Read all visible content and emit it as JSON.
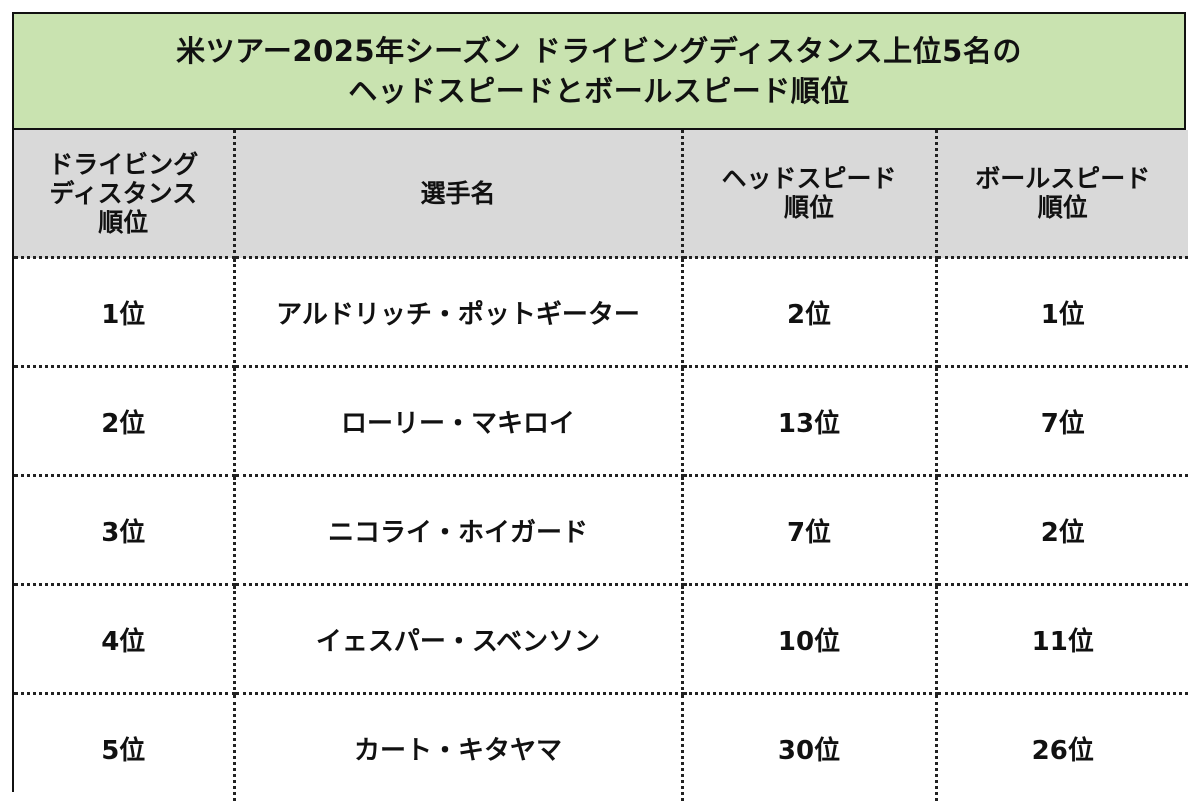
{
  "title": {
    "line1": "米ツアー2025年シーズン ドライビングディスタンス上位5名の",
    "line2": "ヘッドスピードとボールスピード順位"
  },
  "headers": [
    {
      "lines": [
        "ドライビング",
        "ディスタンス",
        "順位"
      ]
    },
    {
      "lines": [
        "選手名"
      ]
    },
    {
      "lines": [
        "ヘッドスピード",
        "順位"
      ]
    },
    {
      "lines": [
        "ボールスピード",
        "順位"
      ]
    }
  ],
  "rows": [
    {
      "distance_rank": "1位",
      "player": "アルドリッチ・ポットギーター",
      "head_speed_rank": "2位",
      "ball_speed_rank": "1位"
    },
    {
      "distance_rank": "2位",
      "player": "ローリー・マキロイ",
      "head_speed_rank": "13位",
      "ball_speed_rank": "7位"
    },
    {
      "distance_rank": "3位",
      "player": "ニコライ・ホイガード",
      "head_speed_rank": "7位",
      "ball_speed_rank": "2位"
    },
    {
      "distance_rank": "4位",
      "player": "イェスパー・スベンソン",
      "head_speed_rank": "10位",
      "ball_speed_rank": "11位"
    },
    {
      "distance_rank": "5位",
      "player": "カート・キタヤマ",
      "head_speed_rank": "30位",
      "ball_speed_rank": "26位"
    }
  ],
  "colors": {
    "title_background": "#c9e3b0",
    "header_background": "#d9d9d9",
    "border": "#111111"
  }
}
